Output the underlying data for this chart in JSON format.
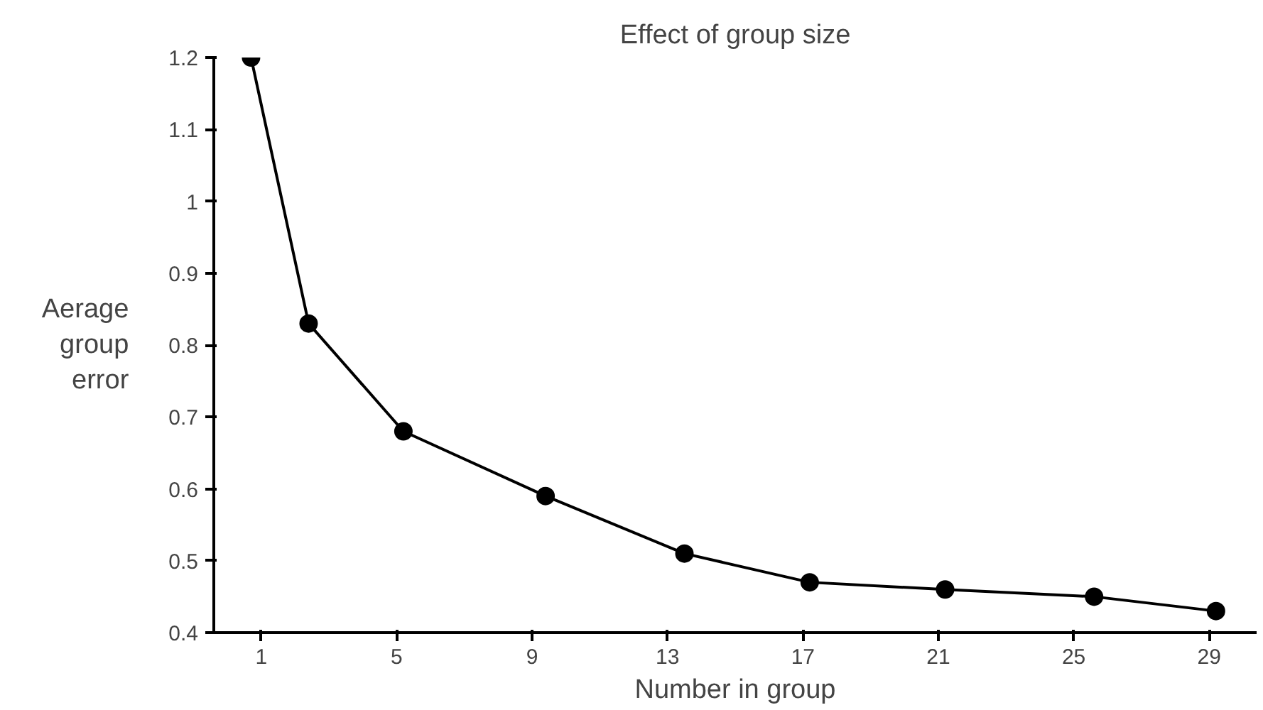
{
  "chart_data": {
    "type": "line",
    "title": "Effect of group size",
    "xlabel": "Number in group",
    "ylabel": "Aerage group error",
    "x": [
      0.7,
      2.4,
      5.2,
      9.4,
      13.5,
      17.2,
      21.2,
      25.6,
      29.2
    ],
    "series": [
      {
        "color": "#000000",
        "values": [
          1.2,
          0.83,
          0.68,
          0.59,
          0.51,
          0.47,
          0.46,
          0.45,
          0.43
        ]
      }
    ],
    "xlim": [
      -0.4,
      30.4
    ],
    "xticks": [
      1,
      5,
      9,
      13,
      17,
      21,
      25,
      29
    ],
    "ylim": [
      0.4,
      1.2
    ],
    "yticks": [
      0.4,
      0.5,
      0.6,
      0.7,
      0.8,
      0.9,
      1,
      1.1,
      1.2
    ],
    "marker": "circle",
    "line_style": "solid"
  }
}
